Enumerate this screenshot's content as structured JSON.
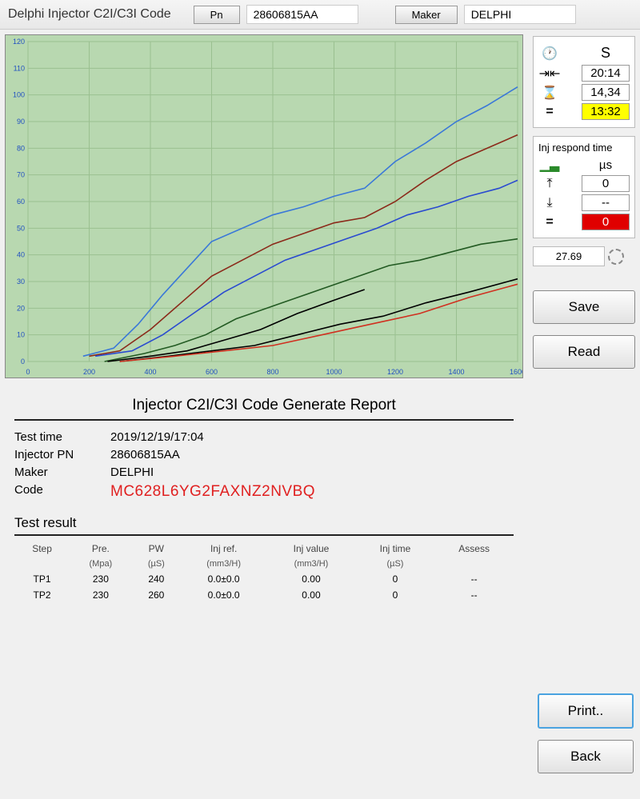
{
  "header": {
    "title": "Delphi Injector C2I/C3I Code",
    "pn_btn": "Pn",
    "pn_value": "28606815AA",
    "maker_btn": "Maker",
    "maker_value": "DELPHI"
  },
  "chart": {
    "type": "line",
    "background": "#b8d8b0",
    "grid_color": "#9ac090",
    "axis_color": "#808080",
    "xlim": [
      0,
      1600
    ],
    "ylim": [
      0,
      120
    ],
    "xtick_step": 200,
    "ytick_step": 10,
    "xticks": [
      0,
      200,
      400,
      600,
      800,
      1000,
      1200,
      1400,
      1600
    ],
    "yticks": [
      0,
      10,
      20,
      30,
      40,
      50,
      60,
      70,
      80,
      90,
      100,
      110,
      120
    ],
    "tick_fontsize": 9,
    "tick_color": "#2050c0",
    "line_width": 1.6,
    "series": [
      {
        "name": "s1",
        "color": "#3a78d8",
        "points": [
          [
            180,
            2
          ],
          [
            280,
            5
          ],
          [
            360,
            14
          ],
          [
            440,
            25
          ],
          [
            520,
            35
          ],
          [
            600,
            45
          ],
          [
            700,
            50
          ],
          [
            800,
            55
          ],
          [
            900,
            58
          ],
          [
            1000,
            62
          ],
          [
            1100,
            65
          ],
          [
            1200,
            75
          ],
          [
            1300,
            82
          ],
          [
            1400,
            90
          ],
          [
            1500,
            96
          ],
          [
            1600,
            103
          ]
        ]
      },
      {
        "name": "s2",
        "color": "#8b2a1a",
        "points": [
          [
            200,
            2
          ],
          [
            300,
            4
          ],
          [
            400,
            12
          ],
          [
            500,
            22
          ],
          [
            600,
            32
          ],
          [
            700,
            38
          ],
          [
            800,
            44
          ],
          [
            900,
            48
          ],
          [
            1000,
            52
          ],
          [
            1100,
            54
          ],
          [
            1200,
            60
          ],
          [
            1300,
            68
          ],
          [
            1400,
            75
          ],
          [
            1500,
            80
          ],
          [
            1600,
            85
          ]
        ]
      },
      {
        "name": "s3",
        "color": "#2a4bd0",
        "points": [
          [
            220,
            2
          ],
          [
            340,
            4
          ],
          [
            440,
            10
          ],
          [
            540,
            18
          ],
          [
            640,
            26
          ],
          [
            740,
            32
          ],
          [
            840,
            38
          ],
          [
            940,
            42
          ],
          [
            1040,
            46
          ],
          [
            1140,
            50
          ],
          [
            1240,
            55
          ],
          [
            1340,
            58
          ],
          [
            1440,
            62
          ],
          [
            1540,
            65
          ],
          [
            1600,
            68
          ]
        ]
      },
      {
        "name": "s4",
        "color": "#225a22",
        "points": [
          [
            250,
            0
          ],
          [
            380,
            3
          ],
          [
            480,
            6
          ],
          [
            580,
            10
          ],
          [
            680,
            16
          ],
          [
            780,
            20
          ],
          [
            880,
            24
          ],
          [
            980,
            28
          ],
          [
            1080,
            32
          ],
          [
            1180,
            36
          ],
          [
            1280,
            38
          ],
          [
            1380,
            41
          ],
          [
            1480,
            44
          ],
          [
            1600,
            46
          ]
        ]
      },
      {
        "name": "s5",
        "color": "#000000",
        "points": [
          [
            260,
            0
          ],
          [
            400,
            2
          ],
          [
            520,
            4
          ],
          [
            640,
            8
          ],
          [
            760,
            12
          ],
          [
            880,
            18
          ],
          [
            1000,
            23
          ],
          [
            1100,
            27
          ]
        ]
      },
      {
        "name": "s6",
        "color": "#000000",
        "points": [
          [
            300,
            0
          ],
          [
            460,
            2
          ],
          [
            600,
            4
          ],
          [
            740,
            6
          ],
          [
            880,
            10
          ],
          [
            1020,
            14
          ],
          [
            1160,
            17
          ],
          [
            1300,
            22
          ],
          [
            1440,
            26
          ],
          [
            1600,
            31
          ]
        ]
      },
      {
        "name": "s7",
        "color": "#d03020",
        "points": [
          [
            300,
            0
          ],
          [
            480,
            2
          ],
          [
            640,
            4
          ],
          [
            800,
            6
          ],
          [
            960,
            10
          ],
          [
            1120,
            14
          ],
          [
            1280,
            18
          ],
          [
            1440,
            24
          ],
          [
            1600,
            29
          ]
        ]
      }
    ]
  },
  "timing": {
    "unit": "S",
    "clock": "20:14",
    "hourglass": "14,34",
    "equals": "13:32",
    "equals_bg": "#ffff00"
  },
  "respond": {
    "title": "Inj respond time",
    "unit": "µs",
    "up": "0",
    "down": "--",
    "equals": "0",
    "equals_bg": "#e00000"
  },
  "spinner_value": "27.69",
  "buttons": {
    "save": "Save",
    "read": "Read",
    "print": "Print..",
    "back": "Back"
  },
  "report": {
    "title": "Injector C2I/C3I Code Generate Report",
    "rows": {
      "test_time_label": "Test time",
      "test_time": "2019/12/19/17:04",
      "pn_label": "Injector PN",
      "pn": "28606815AA",
      "maker_label": "Maker",
      "maker": "DELPHI",
      "code_label": "Code",
      "code": "MC628L6YG2FAXNZ2NVBQ"
    },
    "result_title": "Test result",
    "columns": [
      "Step",
      "Pre.",
      "PW",
      "Inj ref.",
      "Inj value",
      "Inj time",
      "Assess"
    ],
    "units": [
      "",
      "(Mpa)",
      "(µS)",
      "(mm3/H)",
      "(mm3/H)",
      "(µS)",
      ""
    ],
    "data": [
      [
        "TP1",
        "230",
        "240",
        "0.0±0.0",
        "0.00",
        "0",
        "--"
      ],
      [
        "TP2",
        "230",
        "260",
        "0.0±0.0",
        "0.00",
        "0",
        "--"
      ]
    ]
  }
}
